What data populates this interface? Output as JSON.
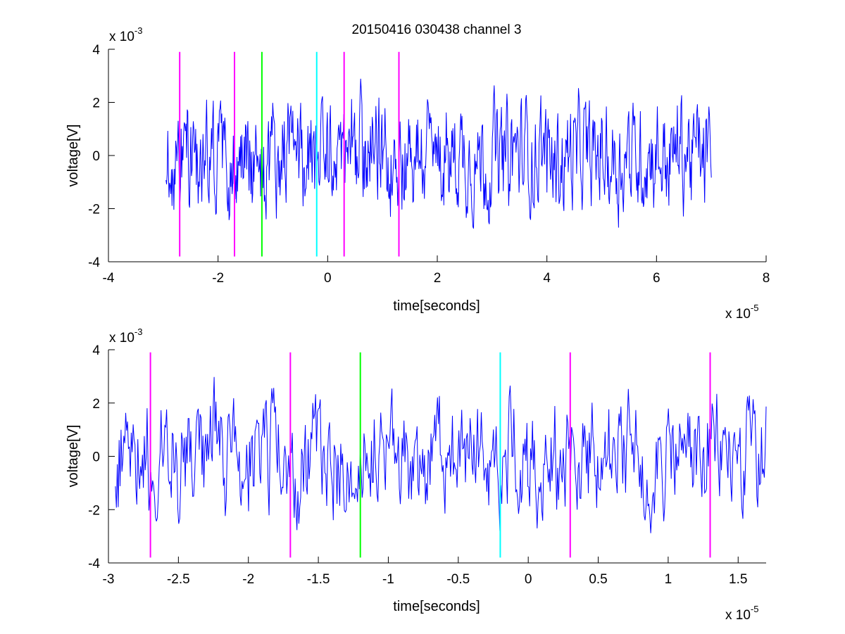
{
  "figure": {
    "title": "20150416 030438 channel 3"
  },
  "chart_data": [
    {
      "type": "line",
      "title": "20150416 030438 channel 3",
      "xlabel": "time[seconds]",
      "ylabel": "voltage[V]",
      "x_exponent_label": "x 10",
      "x_exponent": "-5",
      "y_exponent_label": "x 10",
      "y_exponent": "-3",
      "xlim": [
        -4,
        8
      ],
      "ylim": [
        -4,
        4
      ],
      "x_ticks": [
        "-4",
        "-2",
        "0",
        "2",
        "4",
        "6",
        "8"
      ],
      "y_ticks": [
        "-4",
        "-2",
        "0",
        "2",
        "4"
      ],
      "grid": false,
      "signal": {
        "color": "#0000ff",
        "x_start": -2.95,
        "x_end": 7.0,
        "x_units_note": "x values are in units of 1e-5 seconds, y in units of 1e-3 V",
        "y_range_observed": [
          -3.4,
          3.2
        ]
      },
      "markers": [
        {
          "x": -2.7,
          "color": "#ff00ff"
        },
        {
          "x": -1.7,
          "color": "#ff00ff"
        },
        {
          "x": -1.2,
          "color": "#00ff00"
        },
        {
          "x": -0.2,
          "color": "#00ffff"
        },
        {
          "x": 0.3,
          "color": "#ff00ff"
        },
        {
          "x": 1.3,
          "color": "#ff00ff"
        }
      ],
      "marker_ylim": [
        -3.8,
        3.9
      ]
    },
    {
      "type": "line",
      "xlabel": "time[seconds]",
      "ylabel": "voltage[V]",
      "x_exponent_label": "x 10",
      "x_exponent": "-5",
      "y_exponent_label": "x 10",
      "y_exponent": "-3",
      "xlim": [
        -3.0,
        1.7
      ],
      "ylim": [
        -4,
        4
      ],
      "x_ticks": [
        "-3",
        "-2.5",
        "-2",
        "-1.5",
        "-1",
        "-0.5",
        "0",
        "0.5",
        "1",
        "1.5"
      ],
      "y_ticks": [
        "-4",
        "-2",
        "0",
        "2",
        "4"
      ],
      "grid": false,
      "signal": {
        "color": "#0000ff",
        "x_start": -2.95,
        "x_end": 1.7,
        "y_range_observed": [
          -3.4,
          3.5
        ]
      },
      "markers": [
        {
          "x": -2.7,
          "color": "#ff00ff"
        },
        {
          "x": -1.7,
          "color": "#ff00ff"
        },
        {
          "x": -1.2,
          "color": "#00ff00"
        },
        {
          "x": -0.2,
          "color": "#00ffff"
        },
        {
          "x": 0.3,
          "color": "#ff00ff"
        },
        {
          "x": 1.3,
          "color": "#ff00ff"
        }
      ],
      "marker_ylim": [
        -3.8,
        3.9
      ]
    }
  ]
}
